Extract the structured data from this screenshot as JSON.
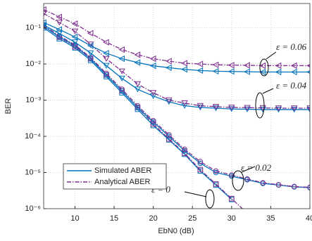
{
  "chart_data": {
    "type": "line",
    "x_label": "EbN0 (dB)",
    "y_label": "BER",
    "yscale": "log",
    "grid": true,
    "xlim": [
      6,
      40
    ],
    "ylim": [
      1e-06,
      0.47
    ],
    "xticks": [
      10,
      15,
      20,
      25,
      30,
      35,
      40
    ],
    "yticks": [
      {
        "value": 1e-06,
        "label": "10⁻⁶"
      },
      {
        "value": 1e-05,
        "label": "10⁻⁵"
      },
      {
        "value": 0.0001,
        "label": "10⁻⁴"
      },
      {
        "value": 0.001,
        "label": "10⁻³"
      },
      {
        "value": 0.01,
        "label": "10⁻²"
      },
      {
        "value": 0.1,
        "label": "10⁻¹"
      }
    ],
    "legend_entries": [
      {
        "name": "Simulated ABER",
        "color": "#0072bd",
        "dash": "solid"
      },
      {
        "name": "Analytical ABER",
        "color": "#7e2f8e",
        "dash": "dashdot"
      }
    ],
    "legend_corner": "lower left",
    "x": [
      6,
      8,
      10,
      12,
      14,
      16,
      18,
      20,
      22,
      24,
      26,
      28,
      30,
      32,
      34,
      36,
      38,
      40
    ],
    "series": [
      {
        "legend": 0,
        "color": "#0072bd",
        "marker": "square",
        "values": [
          0.1,
          0.05,
          0.028,
          0.0126,
          0.0045,
          0.0016,
          0.00056,
          0.0002,
          8e-05,
          3.2e-05,
          1.1e-05,
          4.5e-06,
          1.8e-06,
          null,
          null,
          null,
          null,
          null
        ]
      },
      {
        "legend": 1,
        "color": "#7e2f8e",
        "marker": "square",
        "values": [
          0.11,
          0.055,
          0.03,
          0.014,
          0.005,
          0.0018,
          0.00063,
          0.00022,
          8.5e-05,
          3.4e-05,
          1.2e-05,
          4.8e-06,
          1.9e-06,
          7.5e-07,
          null,
          null,
          null,
          null
        ]
      },
      {
        "legend": 0,
        "color": "#0072bd",
        "marker": "circle",
        "values": [
          0.11,
          0.056,
          0.032,
          0.014,
          0.005,
          0.0018,
          0.00063,
          0.00025,
          0.0001,
          4e-05,
          1.8e-05,
          1e-05,
          7.9e-06,
          6.3e-06,
          5e-06,
          4.5e-06,
          4e-06,
          3.8e-06
        ]
      },
      {
        "legend": 1,
        "color": "#7e2f8e",
        "marker": "circle",
        "values": [
          0.12,
          0.06,
          0.034,
          0.015,
          0.0055,
          0.002,
          0.0007,
          0.00027,
          0.00011,
          4.4e-05,
          2e-05,
          1.1e-05,
          8.5e-06,
          6.6e-06,
          5.2e-06,
          4.6e-06,
          4.1e-06,
          3.9e-06
        ]
      },
      {
        "legend": 0,
        "color": "#0072bd",
        "marker": "triangle-down",
        "values": [
          0.12,
          0.07,
          0.04,
          0.02,
          0.009,
          0.004,
          0.002,
          0.0013,
          0.0009,
          0.0007,
          0.00063,
          0.0006,
          0.00057,
          0.00056,
          0.00055,
          0.00055,
          0.00055,
          0.00055
        ]
      },
      {
        "legend": 1,
        "color": "#7e2f8e",
        "marker": "triangle-down",
        "values": [
          0.25,
          0.14,
          0.08,
          0.035,
          0.014,
          0.0063,
          0.0028,
          0.0016,
          0.001,
          0.00083,
          0.0007,
          0.00066,
          0.00063,
          0.00062,
          0.00061,
          0.0006,
          0.0006,
          0.0006
        ]
      },
      {
        "legend": 0,
        "color": "#0072bd",
        "marker": "triangle-left",
        "values": [
          0.14,
          0.09,
          0.056,
          0.032,
          0.02,
          0.014,
          0.011,
          0.0089,
          0.0079,
          0.0071,
          0.0066,
          0.0063,
          0.0062,
          0.0061,
          0.006,
          0.006,
          0.006,
          0.006
        ]
      },
      {
        "legend": 1,
        "color": "#7e2f8e",
        "marker": "triangle-left",
        "values": [
          0.32,
          0.2,
          0.13,
          0.071,
          0.04,
          0.025,
          0.018,
          0.014,
          0.012,
          0.0105,
          0.01,
          0.0095,
          0.0093,
          0.0092,
          0.009,
          0.009,
          0.009,
          0.009
        ]
      }
    ],
    "annotations": [
      "ε = 0.06",
      "ε = 0.04",
      "ε = 0.02",
      "ε = 0"
    ]
  }
}
